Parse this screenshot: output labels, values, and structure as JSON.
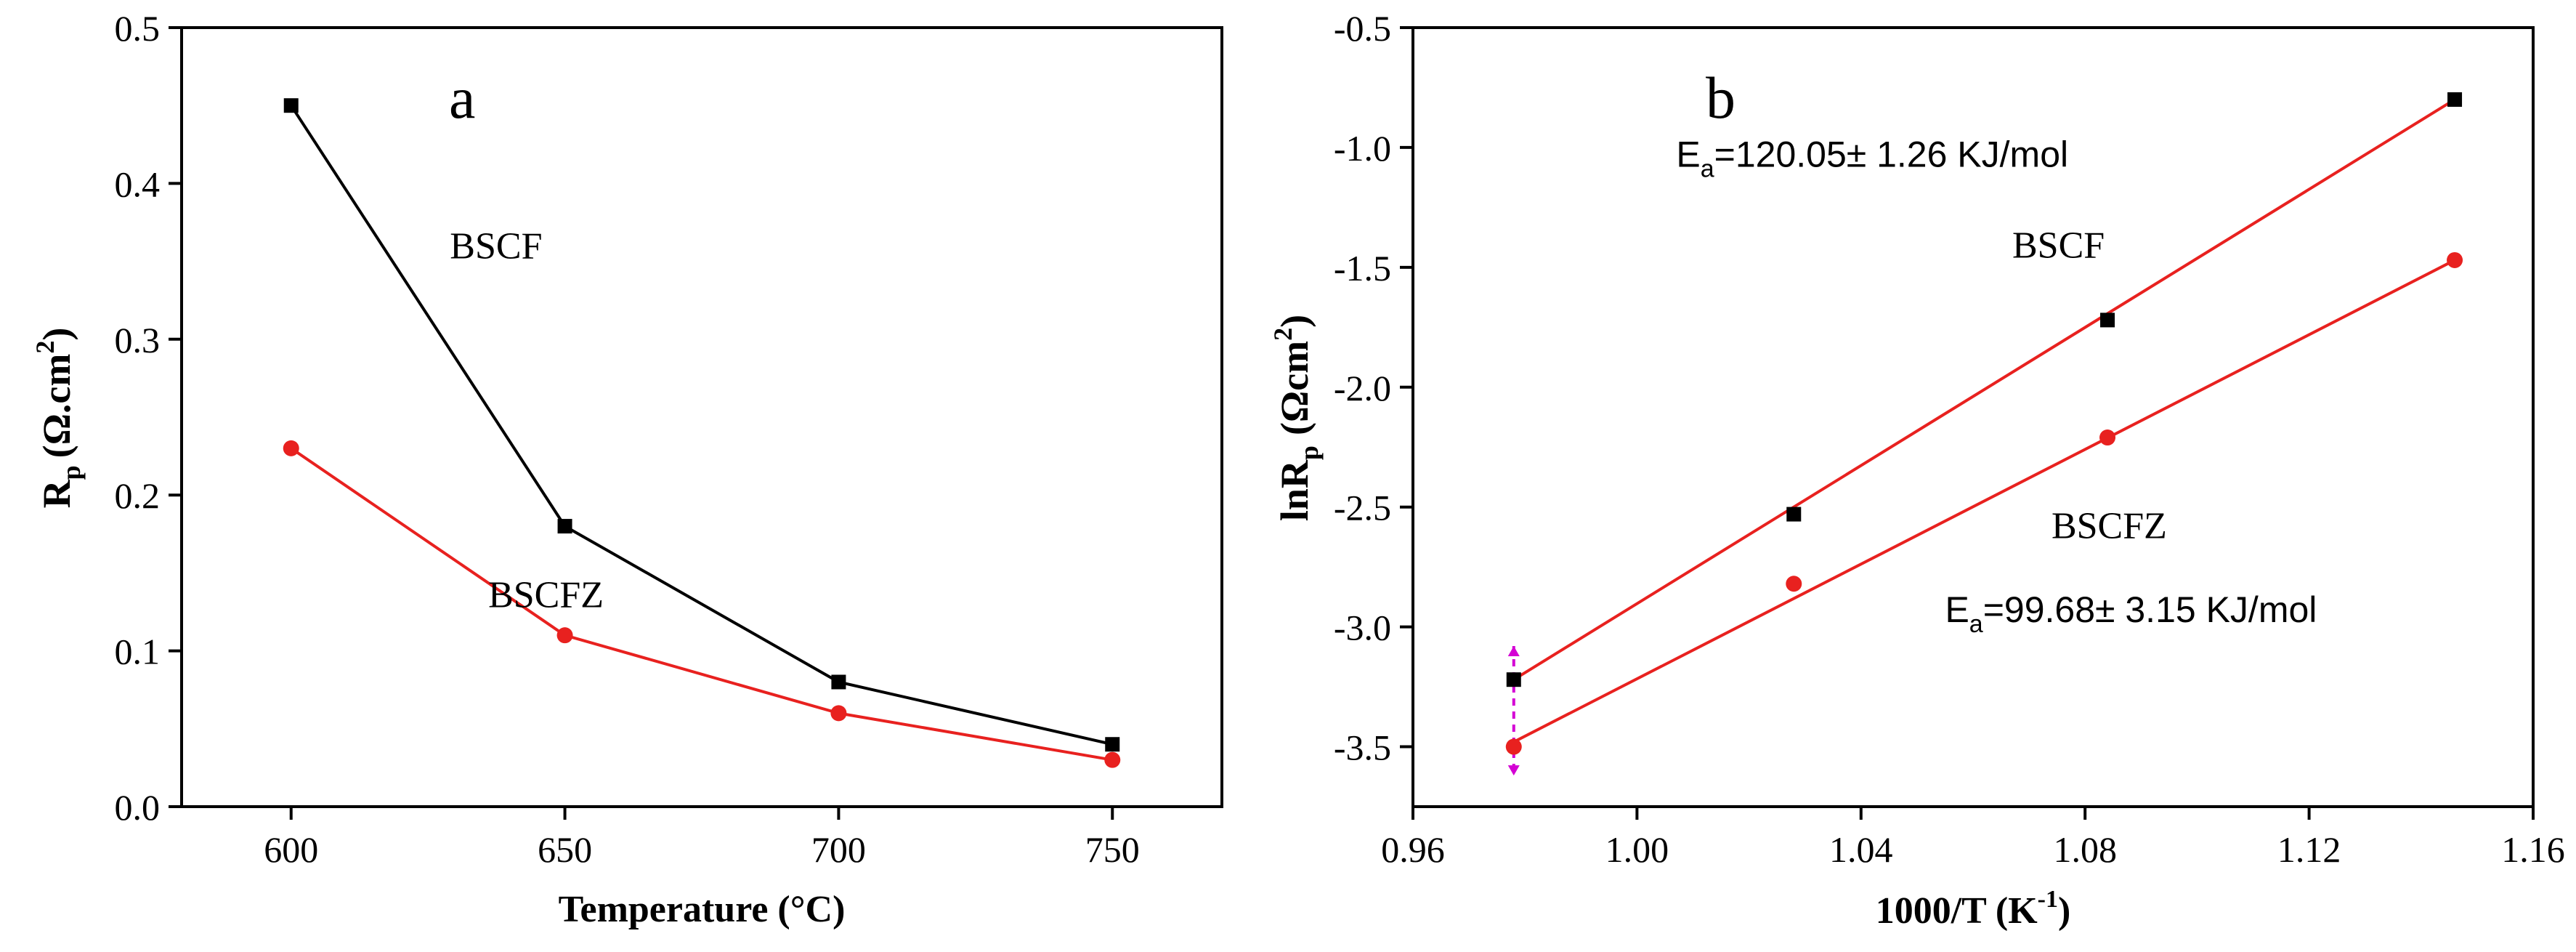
{
  "chart_data": [
    {
      "type": "line",
      "panel_label": "a",
      "xlabel": "Temperature (°C)",
      "ylabel_main": "R",
      "ylabel_sub": "p",
      "ylabel_unit": "(Ω.cm",
      "ylabel_sup": "2",
      "ylabel_close": ")",
      "xlim": [
        580,
        770
      ],
      "ylim": [
        0,
        0.5
      ],
      "x_ticks": [
        600,
        650,
        700,
        750
      ],
      "x_tick_labels": [
        "600",
        "650",
        "700",
        "750"
      ],
      "y_ticks": [
        0.0,
        0.1,
        0.2,
        0.3,
        0.4,
        0.5
      ],
      "y_tick_labels": [
        "0.0",
        "0.1",
        "0.2",
        "0.3",
        "0.4",
        "0.5"
      ],
      "series": [
        {
          "name": "BSCF",
          "color": "#000000",
          "marker": "square",
          "x": [
            600,
            650,
            700,
            750
          ],
          "values": [
            0.45,
            0.18,
            0.08,
            0.04
          ]
        },
        {
          "name": "BSCFZ",
          "color": "#e8211f",
          "marker": "circle",
          "x": [
            600,
            650,
            700,
            750
          ],
          "values": [
            0.23,
            0.11,
            0.06,
            0.03
          ]
        }
      ],
      "annotations": [
        {
          "text": "BSCF",
          "x": 629,
          "y": 0.352
        },
        {
          "text": "BSCFZ",
          "x": 636,
          "y": 0.128
        }
      ]
    },
    {
      "type": "line",
      "panel_label": "b",
      "xlabel_main": "1000/T (K",
      "xlabel_sup": "-1",
      "xlabel_close": ")",
      "ylabel_main": "lnR",
      "ylabel_sub": "p",
      "ylabel_unit": "(Ωcm",
      "ylabel_sup": "2",
      "ylabel_close": ")",
      "xlim": [
        0.96,
        1.16
      ],
      "ylim": [
        -3.75,
        -0.5
      ],
      "x_ticks": [
        0.96,
        1.0,
        1.04,
        1.08,
        1.12,
        1.16
      ],
      "x_tick_labels": [
        "0.96",
        "1.00",
        "1.04",
        "1.08",
        "1.12",
        "1.16"
      ],
      "y_ticks": [
        -3.5,
        -3.0,
        -2.5,
        -2.0,
        -1.5,
        -1.0,
        -0.5
      ],
      "y_tick_labels": [
        "-3.5",
        "-3.0",
        "-2.5",
        "-2.0",
        "-1.5",
        "-1.0",
        "-0.5"
      ],
      "series": [
        {
          "name": "BSCF",
          "color": "#000000",
          "marker": "square",
          "x": [
            0.978,
            1.028,
            1.084,
            1.146
          ],
          "values": [
            -3.22,
            -2.53,
            -1.72,
            -0.8
          ]
        },
        {
          "name": "BSCFZ",
          "color": "#e8211f",
          "marker": "circle",
          "x": [
            0.978,
            1.028,
            1.084,
            1.146
          ],
          "values": [
            -3.5,
            -2.82,
            -2.21,
            -1.47
          ]
        }
      ],
      "fits": [
        {
          "name": "BSCF fit",
          "color": "#e8211f",
          "x": [
            0.978,
            1.146
          ],
          "values": [
            -3.22,
            -0.8
          ]
        },
        {
          "name": "BSCFZ fit",
          "color": "#e8211f",
          "x": [
            0.978,
            1.146
          ],
          "values": [
            -3.48,
            -1.47
          ]
        }
      ],
      "error_bar": {
        "x": 0.978,
        "low": -3.62,
        "high": -3.08,
        "color": "#d400d4"
      },
      "annotations": [
        {
          "main": "E",
          "sub": "a",
          "rest": "=120.05± 1.26 KJ/mol",
          "x": 1.007,
          "y": -1.08
        },
        {
          "text": "BSCF",
          "x": 1.067,
          "y": -1.46
        },
        {
          "text": "BSCFZ",
          "x": 1.074,
          "y": -2.63
        },
        {
          "main": "E",
          "sub": "a",
          "rest": "=99.68± 3.15 KJ/mol",
          "x": 1.055,
          "y": -2.98
        }
      ]
    }
  ]
}
